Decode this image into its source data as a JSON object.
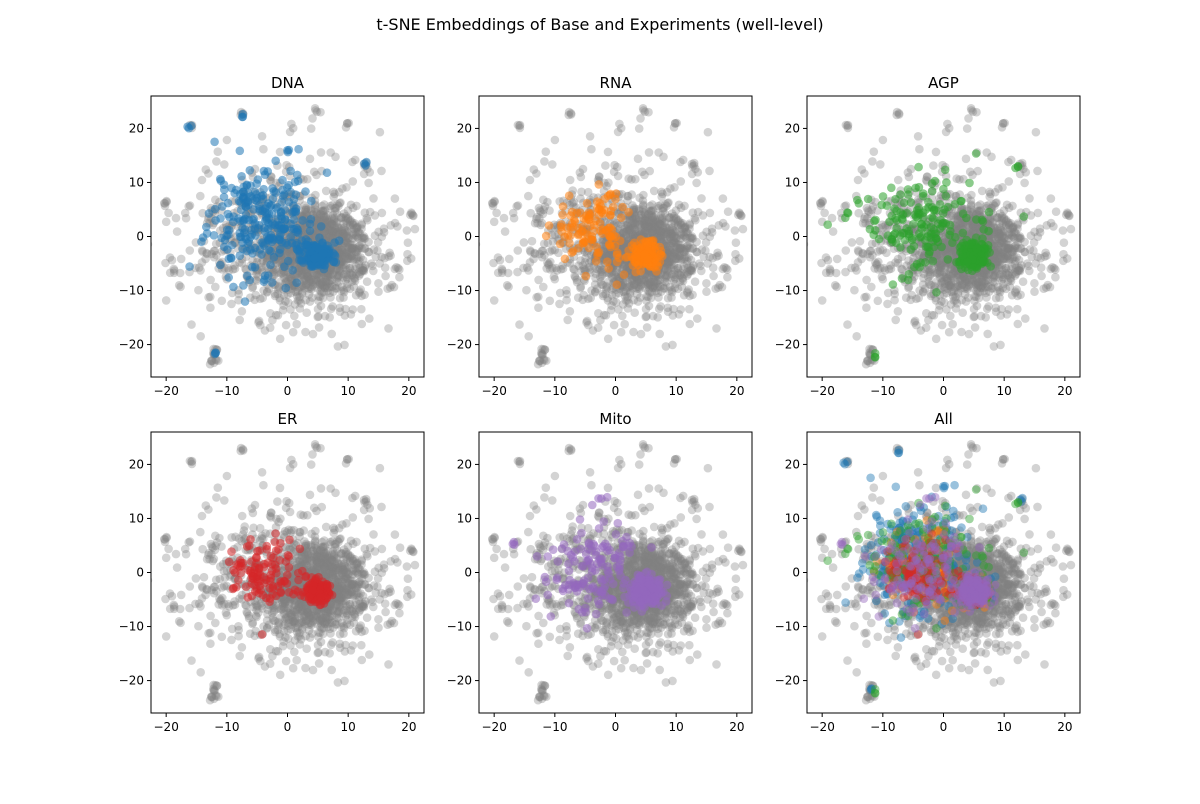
{
  "figure": {
    "suptitle": "t-SNE Embeddings of Base and Experiments (well-level)"
  },
  "style": {
    "base_color": "#808080",
    "channel_colors": {
      "DNA": "#1f77b4",
      "RNA": "#ff7f0e",
      "AGP": "#2ca02c",
      "ER": "#d62728",
      "Mito": "#9467bd"
    }
  },
  "chart_data": [
    {
      "type": "scatter",
      "title": "DNA",
      "highlight": [
        "DNA"
      ],
      "xlim": [
        -22.5,
        22.5
      ],
      "ylim": [
        -26,
        26
      ],
      "xticks": [
        -20,
        -10,
        0,
        10,
        20
      ],
      "yticks": [
        -20,
        -10,
        0,
        10,
        20
      ],
      "xlabel": "",
      "ylabel": "",
      "grid": false
    },
    {
      "type": "scatter",
      "title": "RNA",
      "highlight": [
        "RNA"
      ],
      "xlim": [
        -22.5,
        22.5
      ],
      "ylim": [
        -26,
        26
      ],
      "xticks": [
        -20,
        -10,
        0,
        10,
        20
      ],
      "yticks": [
        -20,
        -10,
        0,
        10,
        20
      ],
      "xlabel": "",
      "ylabel": "",
      "grid": false
    },
    {
      "type": "scatter",
      "title": "AGP",
      "highlight": [
        "AGP"
      ],
      "xlim": [
        -22.5,
        22.5
      ],
      "ylim": [
        -26,
        26
      ],
      "xticks": [
        -20,
        -10,
        0,
        10,
        20
      ],
      "yticks": [
        -20,
        -10,
        0,
        10,
        20
      ],
      "xlabel": "",
      "ylabel": "",
      "grid": false
    },
    {
      "type": "scatter",
      "title": "ER",
      "highlight": [
        "ER"
      ],
      "xlim": [
        -22.5,
        22.5
      ],
      "ylim": [
        -26,
        26
      ],
      "xticks": [
        -20,
        -10,
        0,
        10,
        20
      ],
      "yticks": [
        -20,
        -10,
        0,
        10,
        20
      ],
      "xlabel": "",
      "ylabel": "",
      "grid": false
    },
    {
      "type": "scatter",
      "title": "Mito",
      "highlight": [
        "Mito"
      ],
      "xlim": [
        -22.5,
        22.5
      ],
      "ylim": [
        -26,
        26
      ],
      "xticks": [
        -20,
        -10,
        0,
        10,
        20
      ],
      "yticks": [
        -20,
        -10,
        0,
        10,
        20
      ],
      "xlabel": "",
      "ylabel": "",
      "grid": false
    },
    {
      "type": "scatter",
      "title": "All",
      "highlight": [
        "DNA",
        "RNA",
        "AGP",
        "ER",
        "Mito"
      ],
      "xlim": [
        -22.5,
        22.5
      ],
      "ylim": [
        -26,
        26
      ],
      "xticks": [
        -20,
        -10,
        0,
        10,
        20
      ],
      "yticks": [
        -20,
        -10,
        0,
        10,
        20
      ],
      "xlabel": "",
      "ylabel": "",
      "grid": false
    }
  ]
}
